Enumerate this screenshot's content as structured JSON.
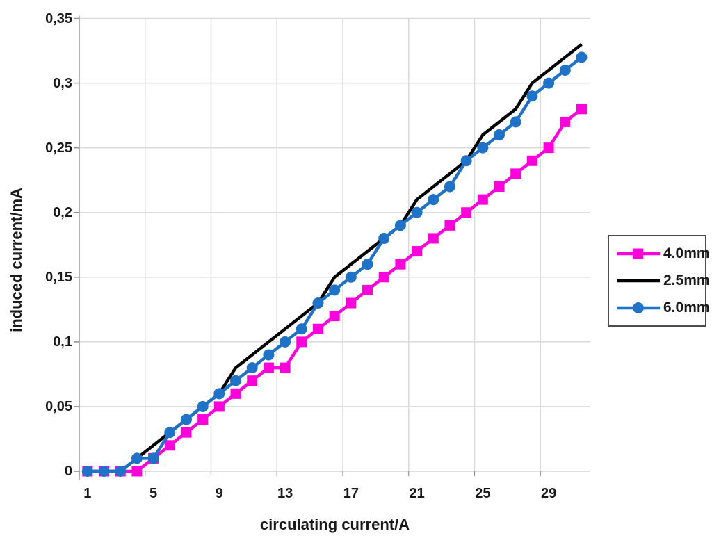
{
  "chart_data": {
    "type": "line",
    "title": "",
    "xlabel": "circulating current/A",
    "ylabel": "induced current/mA",
    "x_categories": [
      1,
      2,
      3,
      4,
      5,
      6,
      7,
      8,
      9,
      10,
      11,
      12,
      13,
      14,
      15,
      16,
      17,
      18,
      19,
      20,
      21,
      22,
      23,
      24,
      25,
      26,
      27,
      28,
      29,
      30,
      31
    ],
    "xtick_categories": [
      1,
      5,
      9,
      13,
      17,
      21,
      25,
      29
    ],
    "xtick_labels": [
      "1",
      "5",
      "9",
      "13",
      "17",
      "21",
      "25",
      "29"
    ],
    "ytick_values": [
      0,
      0.05,
      0.1,
      0.15,
      0.2,
      0.25,
      0.3,
      0.35
    ],
    "ytick_labels": [
      "0",
      "0,05",
      "0,1",
      "0,15",
      "0,2",
      "0,25",
      "0,3",
      "0,35"
    ],
    "ylim": [
      0,
      0.35
    ],
    "grid": true,
    "legend_position": "right",
    "decimal_style": "comma",
    "series": [
      {
        "name": "4.0mm",
        "color": "#FF00DC",
        "marker": "square",
        "values": [
          0,
          0,
          0,
          0,
          0.01,
          0.02,
          0.03,
          0.04,
          0.05,
          0.06,
          0.07,
          0.08,
          0.08,
          0.1,
          0.11,
          0.12,
          0.13,
          0.14,
          0.15,
          0.16,
          0.17,
          0.18,
          0.19,
          0.2,
          0.21,
          0.22,
          0.23,
          0.24,
          0.25,
          0.27,
          0.28
        ]
      },
      {
        "name": "2.5mm",
        "color": "#000000",
        "marker": "none",
        "values": [
          0,
          0,
          0,
          0.01,
          0.02,
          0.03,
          0.04,
          0.05,
          0.06,
          0.08,
          0.09,
          0.1,
          0.11,
          0.12,
          0.13,
          0.15,
          0.16,
          0.17,
          0.18,
          0.19,
          0.21,
          0.22,
          0.23,
          0.24,
          0.26,
          0.27,
          0.28,
          0.3,
          0.31,
          0.32,
          0.33
        ]
      },
      {
        "name": "6.0mm",
        "color": "#1E73C8",
        "marker": "circle",
        "values": [
          0,
          0,
          0,
          0.01,
          0.01,
          0.03,
          0.04,
          0.05,
          0.06,
          0.07,
          0.08,
          0.09,
          0.1,
          0.11,
          0.13,
          0.14,
          0.15,
          0.16,
          0.18,
          0.19,
          0.2,
          0.21,
          0.22,
          0.24,
          0.25,
          0.26,
          0.27,
          0.29,
          0.3,
          0.31,
          0.32
        ]
      }
    ]
  },
  "colors": {
    "background": "#FFFFFF",
    "gridline": "#D9D9D9",
    "axis": "#9B9B9B",
    "tick": "#8C8C8C",
    "text": "#1A1A1A",
    "legend_border": "#4D4D4D"
  }
}
